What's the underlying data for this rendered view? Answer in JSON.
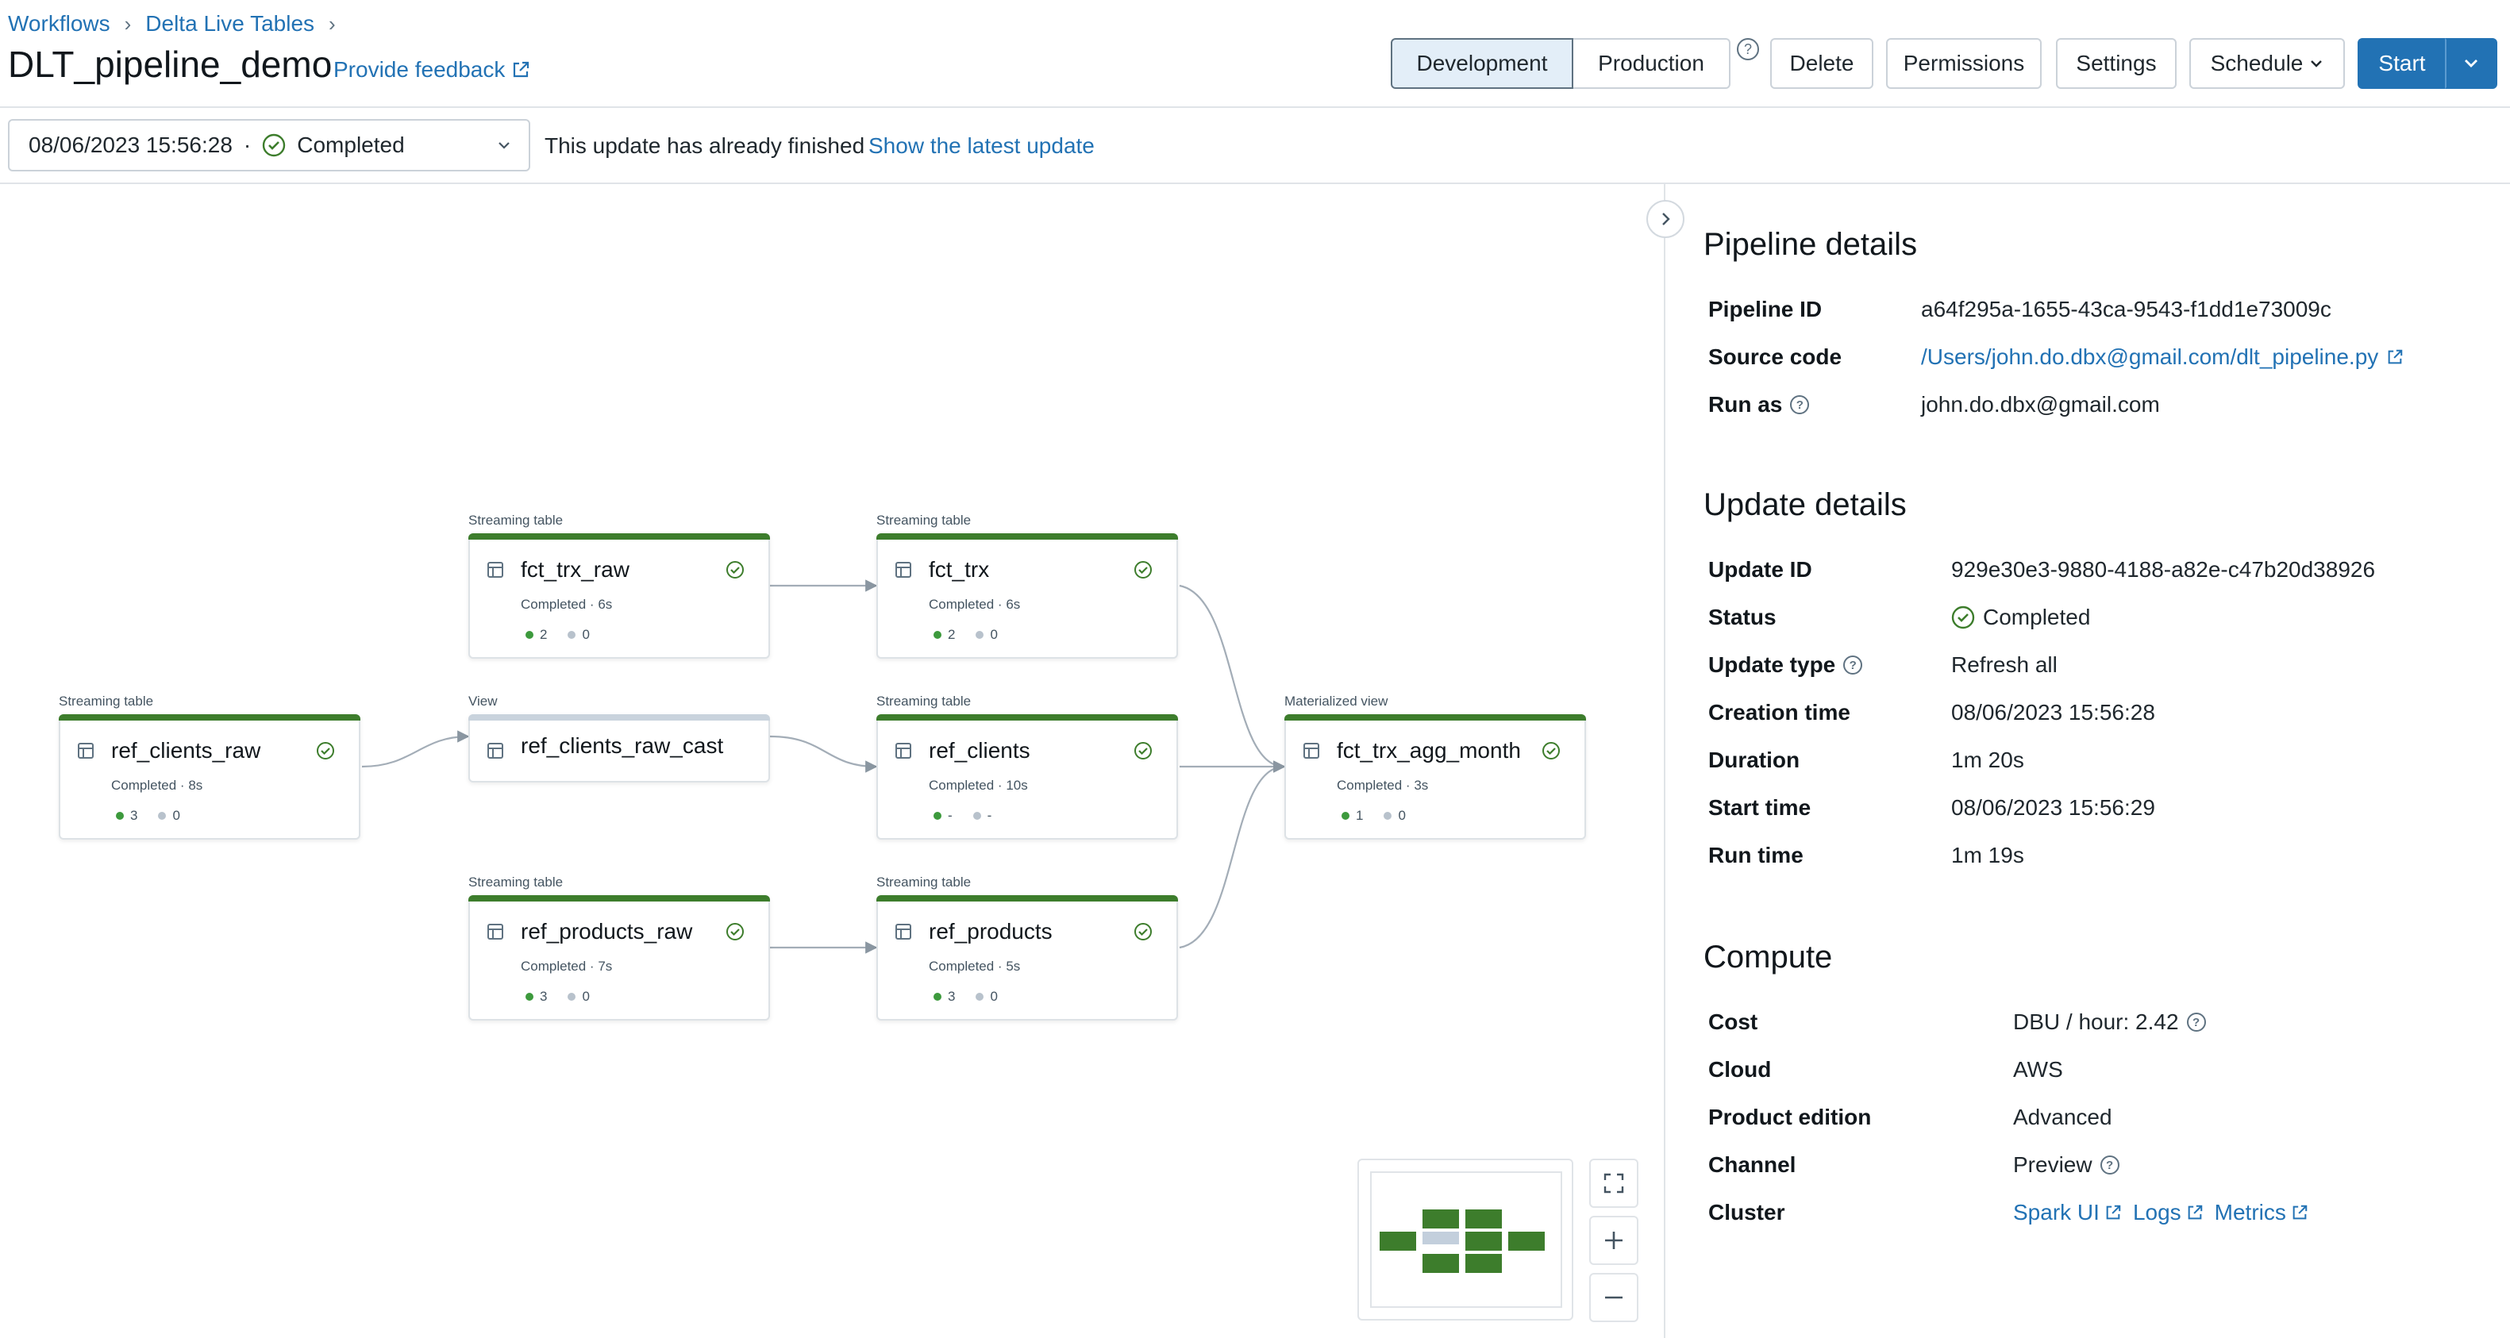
{
  "breadcrumb": [
    "Workflows",
    "Delta Live Tables"
  ],
  "page_title": "DLT_pipeline_demo",
  "feedback_label": "Provide feedback",
  "modes": {
    "development": "Development",
    "production": "Production",
    "active": "Development"
  },
  "actions": {
    "delete": "Delete",
    "permissions": "Permissions",
    "settings": "Settings",
    "schedule": "Schedule",
    "start": "Start"
  },
  "update_select": {
    "timestamp": "08/06/2023 15:56:28",
    "separator": "·",
    "status": "Completed"
  },
  "update_message": "This update has already finished",
  "update_link": "Show the latest update",
  "graph": {
    "nodes": [
      {
        "kind": "Streaming table",
        "name": "fct_trx_raw",
        "sub": "Completed · 6s",
        "green": "2",
        "gray": "0"
      },
      {
        "kind": "Streaming table",
        "name": "fct_trx",
        "sub": "Completed · 6s",
        "green": "2",
        "gray": "0"
      },
      {
        "kind": "Streaming table",
        "name": "ref_clients_raw",
        "sub": "Completed · 8s",
        "green": "3",
        "gray": "0"
      },
      {
        "kind": "View",
        "name": "ref_clients_raw_cast"
      },
      {
        "kind": "Streaming table",
        "name": "ref_clients",
        "sub": "Completed · 10s",
        "green": "-",
        "gray": "-"
      },
      {
        "kind": "Materialized view",
        "name": "fct_trx_agg_month",
        "sub": "Completed · 3s",
        "green": "1",
        "gray": "0"
      },
      {
        "kind": "Streaming table",
        "name": "ref_products_raw",
        "sub": "Completed · 7s",
        "green": "3",
        "gray": "0"
      },
      {
        "kind": "Streaming table",
        "name": "ref_products",
        "sub": "Completed · 5s",
        "green": "3",
        "gray": "0"
      }
    ]
  },
  "pipeline_details": {
    "title": "Pipeline details",
    "pipeline_id_label": "Pipeline ID",
    "pipeline_id": "a64f295a-1655-43ca-9543-f1dd1e73009c",
    "source_code_label": "Source code",
    "source_code": "/Users/john.do.dbx@gmail.com/dlt_pipeline.py",
    "run_as_label": "Run as",
    "run_as": "john.do.dbx@gmail.com"
  },
  "update_details": {
    "title": "Update details",
    "update_id_label": "Update ID",
    "update_id": "929e30e3-9880-4188-a82e-c47b20d38926",
    "status_label": "Status",
    "status": "Completed",
    "update_type_label": "Update type",
    "update_type": "Refresh all",
    "creation_time_label": "Creation time",
    "creation_time": "08/06/2023 15:56:28",
    "duration_label": "Duration",
    "duration": "1m 20s",
    "start_time_label": "Start time",
    "start_time": "08/06/2023 15:56:29",
    "run_time_label": "Run time",
    "run_time": "1m 19s"
  },
  "compute": {
    "title": "Compute",
    "cost_label": "Cost",
    "cost": "DBU / hour: 2.42",
    "cloud_label": "Cloud",
    "cloud": "AWS",
    "edition_label": "Product edition",
    "edition": "Advanced",
    "channel_label": "Channel",
    "channel": "Preview",
    "cluster_label": "Cluster",
    "cluster_links": [
      "Spark UI",
      "Logs",
      "Metrics"
    ]
  },
  "colors": {
    "accent": "#2272b4",
    "success": "#3d7d2c",
    "view_bar": "#c9d3dd"
  }
}
